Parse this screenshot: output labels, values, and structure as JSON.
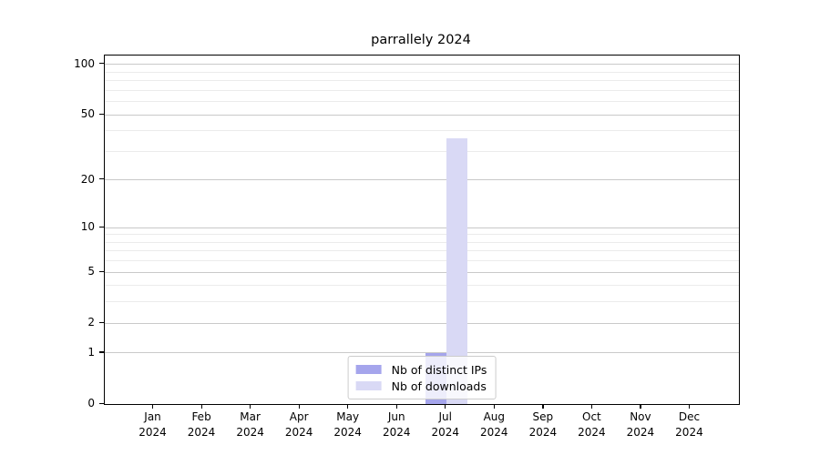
{
  "chart_data": {
    "type": "bar",
    "title": "parrallely 2024",
    "categories": [
      "Jan",
      "Feb",
      "Mar",
      "Apr",
      "May",
      "Jun",
      "Jul",
      "Aug",
      "Sep",
      "Oct",
      "Nov",
      "Dec"
    ],
    "category_year": "2024",
    "series": [
      {
        "name": "Nb of distinct IPs",
        "color": "#a5a5ec",
        "values": [
          0,
          0,
          0,
          0,
          0,
          0,
          1,
          0,
          0,
          0,
          0,
          0
        ]
      },
      {
        "name": "Nb of downloads",
        "color": "#d9d9f5",
        "values": [
          0,
          0,
          0,
          0,
          0,
          0,
          36,
          0,
          0,
          0,
          0,
          0
        ]
      }
    ],
    "yscale": "log1p",
    "yticks": [
      0,
      1,
      2,
      5,
      10,
      20,
      50,
      100
    ],
    "yticks_minor": [
      3,
      4,
      6,
      7,
      8,
      9,
      30,
      40,
      60,
      70,
      80,
      90
    ],
    "ylim": [
      0,
      113
    ],
    "xlabel": "",
    "ylabel": "",
    "grid": true,
    "legend_position": "lower center",
    "frame_color": "#000000",
    "grid_major_color": "#c9c9c9",
    "grid_minor_color": "#ebebeb"
  }
}
